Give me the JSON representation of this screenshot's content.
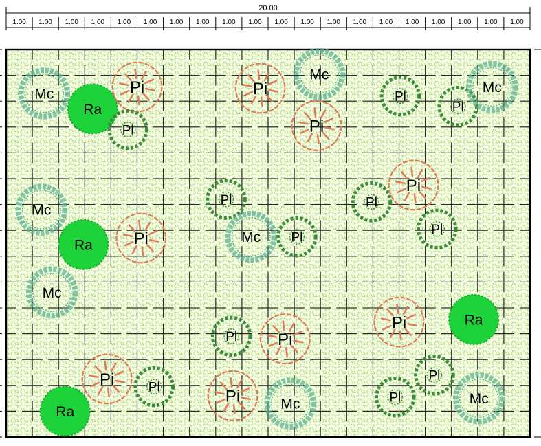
{
  "dimension": {
    "total_label": "20.00",
    "segment_labels": [
      "1.00",
      "1.00",
      "1.00",
      "1.00",
      "1.00",
      "1.00",
      "1.00",
      "1.00",
      "1.00",
      "1.00",
      "1.00",
      "1.00",
      "1.00",
      "1.00",
      "1.00",
      "1.00",
      "1.00",
      "1.00",
      "1.00",
      "1.00"
    ]
  },
  "grid": {
    "columns": 20,
    "rows": 15
  },
  "colors": {
    "ground": "#f4fbe6",
    "ground_texture": "#b9e07a",
    "grid": "#2a2a2a",
    "border": "#000000",
    "Pi": "#e07a5c",
    "Pl": "#3e8a3e",
    "Mc": "#5fb394",
    "Ra": "#1ed23a"
  },
  "plants": [
    {
      "code": "Mc",
      "x": 1.45,
      "y": 1.7,
      "size": 1.0
    },
    {
      "code": "Ra",
      "x": 3.3,
      "y": 2.3,
      "size": 0.95
    },
    {
      "code": "Pi",
      "x": 5.0,
      "y": 1.45,
      "size": 1.0
    },
    {
      "code": "Pl",
      "x": 4.65,
      "y": 3.1,
      "size": 0.8
    },
    {
      "code": "Pi",
      "x": 9.7,
      "y": 1.5,
      "size": 1.0
    },
    {
      "code": "Mc",
      "x": 11.95,
      "y": 0.95,
      "size": 1.0
    },
    {
      "code": "Pi",
      "x": 11.85,
      "y": 2.95,
      "size": 1.0
    },
    {
      "code": "Pl",
      "x": 15.05,
      "y": 1.8,
      "size": 0.8
    },
    {
      "code": "Pl",
      "x": 17.25,
      "y": 2.2,
      "size": 0.8
    },
    {
      "code": "Mc",
      "x": 18.55,
      "y": 1.45,
      "size": 1.0
    },
    {
      "code": "Mc",
      "x": 1.35,
      "y": 6.2,
      "size": 1.0
    },
    {
      "code": "Ra",
      "x": 2.95,
      "y": 7.55,
      "size": 0.95
    },
    {
      "code": "Pi",
      "x": 5.15,
      "y": 7.3,
      "size": 1.0
    },
    {
      "code": "Pl",
      "x": 8.4,
      "y": 5.8,
      "size": 0.8
    },
    {
      "code": "Mc",
      "x": 9.35,
      "y": 7.25,
      "size": 1.0
    },
    {
      "code": "Pl",
      "x": 11.1,
      "y": 7.25,
      "size": 0.8
    },
    {
      "code": "Pl",
      "x": 13.95,
      "y": 5.9,
      "size": 0.8
    },
    {
      "code": "Pi",
      "x": 15.55,
      "y": 5.25,
      "size": 1.0
    },
    {
      "code": "Pl",
      "x": 16.45,
      "y": 6.95,
      "size": 0.8
    },
    {
      "code": "Mc",
      "x": 1.75,
      "y": 9.4,
      "size": 1.0
    },
    {
      "code": "Pl",
      "x": 8.6,
      "y": 11.1,
      "size": 0.8
    },
    {
      "code": "Pi",
      "x": 10.65,
      "y": 11.2,
      "size": 1.0
    },
    {
      "code": "Pi",
      "x": 15.0,
      "y": 10.55,
      "size": 1.0
    },
    {
      "code": "Ra",
      "x": 17.85,
      "y": 10.45,
      "size": 0.95
    },
    {
      "code": "Pi",
      "x": 3.85,
      "y": 12.75,
      "size": 1.0
    },
    {
      "code": "Pl",
      "x": 5.65,
      "y": 13.05,
      "size": 0.8
    },
    {
      "code": "Pi",
      "x": 8.65,
      "y": 13.4,
      "size": 1.0
    },
    {
      "code": "Mc",
      "x": 10.85,
      "y": 13.7,
      "size": 1.0
    },
    {
      "code": "Pl",
      "x": 14.85,
      "y": 13.45,
      "size": 0.8
    },
    {
      "code": "Pl",
      "x": 16.35,
      "y": 12.6,
      "size": 0.8
    },
    {
      "code": "Mc",
      "x": 18.05,
      "y": 13.5,
      "size": 1.0
    },
    {
      "code": "Ra",
      "x": 2.25,
      "y": 14.0,
      "size": 0.95
    }
  ]
}
